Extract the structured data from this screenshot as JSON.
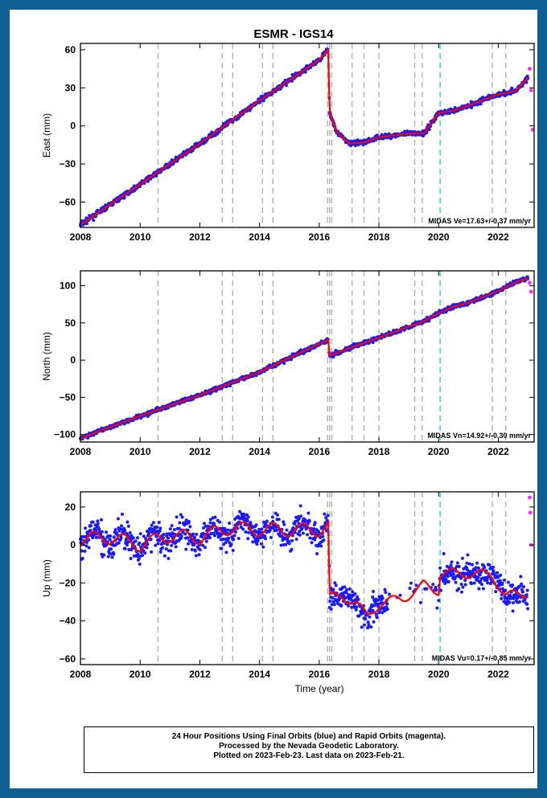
{
  "title": "ESMR - IGS14",
  "footer": {
    "line1": "24 Hour Positions Using Final Orbits (blue) and Rapid Orbits (magenta).",
    "line2": "Processed by the Nevada Geodetic Laboratory.",
    "line3": "Plotted on 2023-Feb-23. Last data on 2023-Feb-21."
  },
  "colors": {
    "final": "#1a1aff",
    "rapid": "#ff2bff",
    "model": "#ff0000",
    "steps": "#b0b0b0",
    "special": "#33cccc",
    "frame": "#0f5f93"
  },
  "chart_data": [
    {
      "type": "scatter",
      "title": "ESMR - IGS14",
      "xlabel": "",
      "ylabel": "East (mm)",
      "xlim": [
        2008,
        2023.2
      ],
      "ylim": [
        -80,
        65
      ],
      "xticks": [
        2008,
        2010,
        2012,
        2014,
        2016,
        2018,
        2020,
        2022
      ],
      "yticks": [
        60,
        30,
        0,
        -30,
        -60
      ],
      "annotation": "MIDAS Ve=17.63+/-0.37 mm/yr",
      "grid": false,
      "series": [
        {
          "name": "Final Orbits",
          "color": "#1a1aff",
          "x": [
            2008.0,
            2010.0,
            2012.0,
            2014.0,
            2016.0,
            2016.3,
            2016.35,
            2016.6,
            2017.0,
            2017.5,
            2018.0,
            2019.0,
            2019.5,
            2020.0,
            2020.5,
            2021.0,
            2022.0,
            2022.3,
            2022.6,
            2023.0
          ],
          "y": [
            -78,
            -46,
            -14,
            20,
            52,
            60,
            10,
            -5,
            -14,
            -13,
            -9,
            -6,
            -6,
            10,
            12,
            16,
            25,
            26,
            28,
            38
          ]
        },
        {
          "name": "Rapid Orbits",
          "color": "#ff2bff",
          "x": [
            2023.05,
            2023.1,
            2023.15
          ],
          "y": [
            45,
            28,
            -3
          ]
        },
        {
          "x": [
            2008.0,
            2010.0,
            2012.0,
            2014.0,
            2016.0,
            2016.3,
            2016.35,
            2016.6,
            2017.0,
            2017.5,
            2018.0,
            2019.0,
            2019.5,
            2020.0,
            2020.5,
            2021.0,
            2022.0,
            2022.3,
            2022.6,
            2023.0
          ],
          "y": [
            -78,
            -46,
            -14,
            20,
            52,
            60,
            10,
            -5,
            -14,
            -13,
            -9,
            -6,
            -6,
            10,
            12,
            16,
            25,
            26,
            28,
            38
          ]
        }
      ],
      "step_epochs": [
        2010.6,
        2012.75,
        2013.1,
        2014.1,
        2014.45,
        2016.28,
        2016.35,
        2016.42,
        2017.1,
        2017.5,
        2018.0,
        2019.2,
        2019.45,
        2021.8,
        2022.25
      ],
      "special_epochs": [
        2020.05
      ]
    },
    {
      "type": "scatter",
      "title": "",
      "xlabel": "",
      "ylabel": "North (mm)",
      "xlim": [
        2008,
        2023.2
      ],
      "ylim": [
        -110,
        120
      ],
      "xticks": [
        2008,
        2010,
        2012,
        2014,
        2016,
        2018,
        2020,
        2022
      ],
      "yticks": [
        100,
        50,
        0,
        -50,
        -100
      ],
      "annotation": "MIDAS Vn=14.92+/-0.30 mm/yr",
      "grid": false,
      "series": [
        {
          "name": "Final Orbits",
          "color": "#1a1aff",
          "x": [
            2008.0,
            2010.0,
            2012.0,
            2014.0,
            2016.0,
            2016.3,
            2016.35,
            2017.0,
            2018.0,
            2019.0,
            2019.5,
            2020.0,
            2020.5,
            2021.0,
            2022.0,
            2022.6,
            2023.0
          ],
          "y": [
            -105,
            -75,
            -47,
            -16,
            22,
            27,
            6,
            16,
            30,
            45,
            52,
            63,
            72,
            77,
            93,
            105,
            110
          ]
        },
        {
          "name": "Rapid Orbits",
          "color": "#ff2bff",
          "x": [
            2023.05,
            2023.1
          ],
          "y": [
            104,
            92
          ]
        },
        {
          "x": [
            2008.0,
            2010.0,
            2012.0,
            2014.0,
            2016.0,
            2016.3,
            2016.35,
            2017.0,
            2018.0,
            2019.0,
            2019.5,
            2020.0,
            2020.5,
            2021.0,
            2022.0,
            2022.6,
            2023.0
          ],
          "y": [
            -105,
            -75,
            -47,
            -16,
            22,
            27,
            6,
            16,
            30,
            45,
            52,
            63,
            72,
            77,
            93,
            105,
            110
          ]
        }
      ],
      "step_epochs": [
        2010.6,
        2012.75,
        2013.1,
        2014.1,
        2014.45,
        2016.28,
        2016.35,
        2016.42,
        2017.1,
        2017.5,
        2018.0,
        2019.2,
        2019.45,
        2021.8,
        2022.25
      ],
      "special_epochs": [
        2020.05
      ]
    },
    {
      "type": "scatter",
      "title": "",
      "xlabel": "Time (year)",
      "ylabel": "Up (mm)",
      "xlim": [
        2008,
        2023.2
      ],
      "ylim": [
        -63,
        28
      ],
      "xticks": [
        2008,
        2010,
        2012,
        2014,
        2016,
        2018,
        2020,
        2022
      ],
      "yticks": [
        20,
        0,
        -20,
        -40,
        -60
      ],
      "annotation": "MIDAS Vu=0.17+/-0.85 mm/yr",
      "grid": false,
      "series": [
        {
          "name": "Final Orbits",
          "color": "#1a1aff",
          "x": [
            2008.0,
            2009.0,
            2010.0,
            2011.0,
            2012.0,
            2013.0,
            2014.0,
            2015.0,
            2016.0,
            2016.3,
            2016.35,
            2016.8,
            2017.2,
            2017.6,
            2018.0,
            2018.8,
            2019.3,
            2019.5,
            2020.0,
            2020.05,
            2021.0,
            2021.8,
            2022.25,
            2023.0
          ],
          "y": [
            3,
            4,
            0,
            5,
            4,
            9,
            8,
            8,
            8,
            10,
            -28,
            -27,
            -30,
            -38,
            -31,
            -28,
            -24,
            -21,
            -24,
            -15,
            -15,
            -16,
            -27,
            -25
          ]
        },
        {
          "name": "Rapid Orbits",
          "color": "#ff2bff",
          "x": [
            2023.05,
            2023.07,
            2023.1
          ],
          "y": [
            25,
            17,
            0
          ]
        },
        {
          "x": [
            2008.0,
            2009.0,
            2010.0,
            2011.0,
            2012.0,
            2013.0,
            2014.0,
            2015.0,
            2016.0,
            2016.3,
            2016.35,
            2016.8,
            2017.2,
            2017.6,
            2018.0,
            2018.8,
            2019.3,
            2019.5,
            2020.0,
            2020.05,
            2021.0,
            2021.8,
            2022.25,
            2023.0
          ],
          "y": [
            3,
            4,
            0,
            5,
            4,
            9,
            8,
            8,
            8,
            10,
            -28,
            -27,
            -30,
            -38,
            -31,
            -28,
            -24,
            -21,
            -24,
            -15,
            -15,
            -16,
            -27,
            -25
          ]
        }
      ],
      "step_epochs": [
        2010.6,
        2012.75,
        2013.1,
        2014.1,
        2014.45,
        2016.28,
        2016.35,
        2016.42,
        2017.1,
        2017.5,
        2018.0,
        2019.2,
        2019.45,
        2021.8,
        2022.25
      ],
      "special_epochs": [
        2020.05
      ]
    }
  ]
}
